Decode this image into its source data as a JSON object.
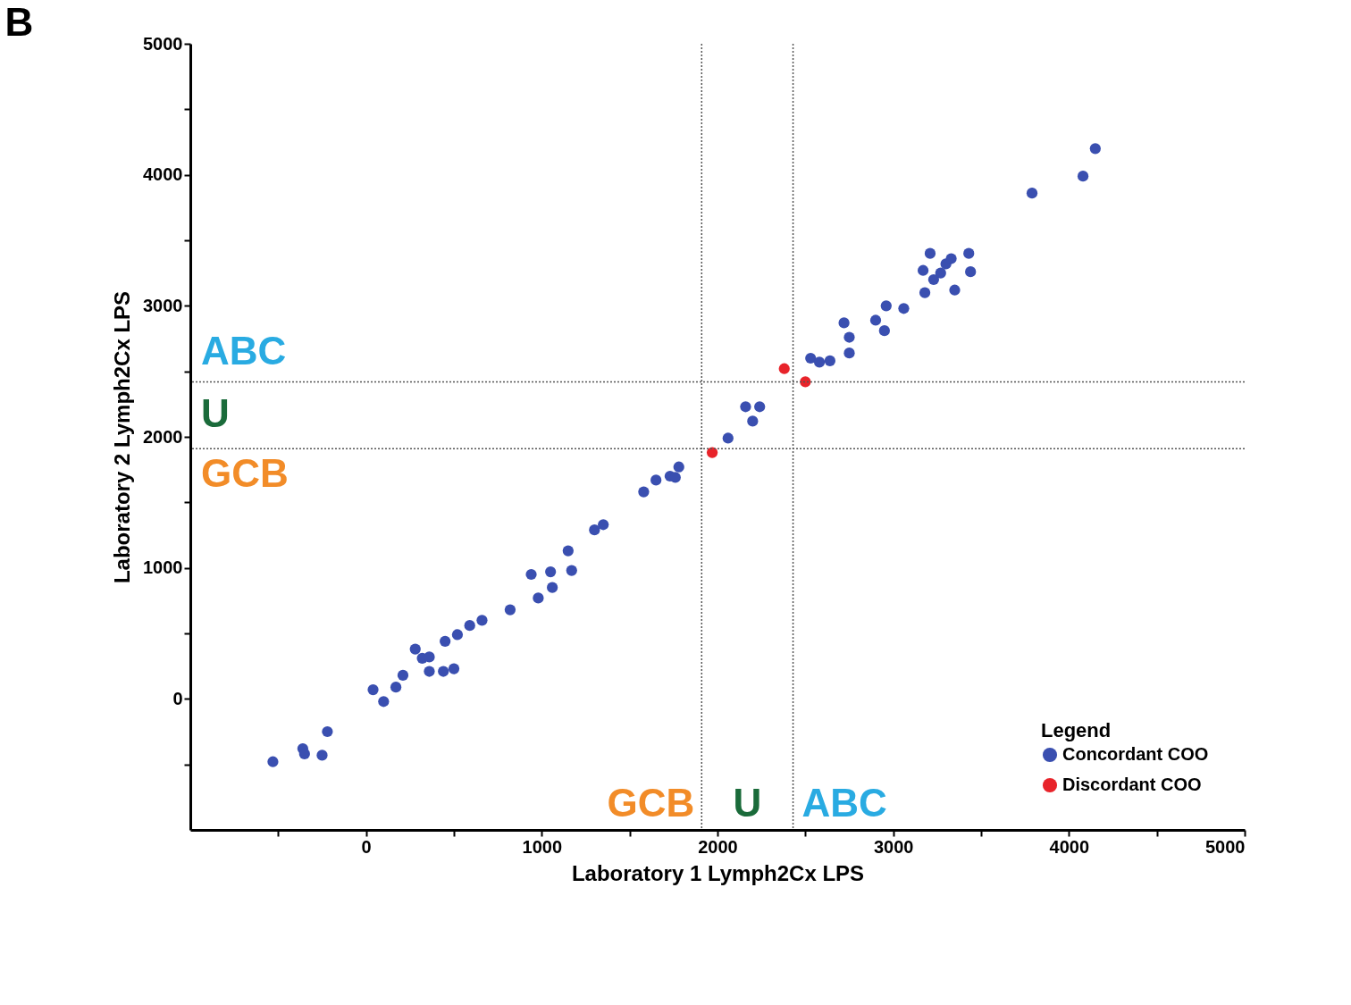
{
  "chart_data": {
    "type": "scatter",
    "title": "B",
    "xlabel": "Laboratory 1 Lymph2Cx LPS",
    "ylabel": "Laboratory 2 Lymph2Cx LPS",
    "legend_title": "Legend",
    "xlim": [
      -1000,
      5000
    ],
    "ylim": [
      -1000,
      5000
    ],
    "xticks": [
      {
        "value": -500,
        "label": null
      },
      0,
      {
        "value": 500,
        "label": null
      },
      1000,
      {
        "value": 1500,
        "label": null
      },
      2000,
      {
        "value": 2500,
        "label": null
      },
      3000,
      {
        "value": 3500,
        "label": null
      },
      4000,
      {
        "value": 4500,
        "label": null
      },
      5000
    ],
    "yticks": [
      {
        "value": -500,
        "label": null
      },
      0,
      {
        "value": 500,
        "label": null
      },
      1000,
      {
        "value": 1500,
        "label": null
      },
      2000,
      {
        "value": 2500,
        "label": null
      },
      3000,
      {
        "value": 3500,
        "label": null
      },
      4000,
      {
        "value": 4500,
        "label": null
      },
      5000
    ],
    "annotations": [
      "GCB",
      "U",
      "ABC",
      "ABC",
      "U",
      "GCB"
    ],
    "grid": false,
    "legend": "bottom right",
    "marker": "circle",
    "series": [
      {
        "name": "Concordant COO",
        "color": "#3a4fb0",
        "x": [
          -530,
          -360,
          -350,
          -250,
          -220,
          40,
          100,
          170,
          210,
          280,
          320,
          360,
          360,
          440,
          500,
          450,
          520,
          590,
          660,
          820,
          940,
          980,
          1050,
          1060,
          1150,
          1170,
          1300,
          1350,
          1580,
          1650,
          1730,
          1760,
          1780,
          2060,
          2160,
          2240,
          2200,
          2530,
          2580,
          2640,
          2720,
          2750,
          2750,
          2900,
          2950,
          2960,
          3060,
          3180,
          3170,
          3210,
          3230,
          3270,
          3300,
          3330,
          3350,
          3430,
          3440,
          3790,
          4080,
          4150
        ],
        "values": [
          -480,
          -380,
          -420,
          -430,
          -250,
          70,
          -20,
          90,
          180,
          380,
          310,
          320,
          210,
          210,
          230,
          440,
          490,
          560,
          600,
          680,
          950,
          770,
          970,
          850,
          1130,
          980,
          1290,
          1330,
          1580,
          1670,
          1700,
          1690,
          1770,
          1990,
          2230,
          2230,
          2120,
          2600,
          2570,
          2580,
          2870,
          2760,
          2640,
          2890,
          2810,
          3000,
          2980,
          3100,
          3270,
          3400,
          3200,
          3250,
          3320,
          3360,
          3120,
          3400,
          3260,
          3860,
          3990,
          4200
        ]
      },
      {
        "name": "Discordant COO",
        "color": "#e8232a",
        "x": [
          1970,
          2380,
          2500
        ],
        "values": [
          1880,
          2520,
          2420
        ]
      }
    ],
    "ref_lines": [
      {
        "axis": "x",
        "value": 1910,
        "color": "#555555",
        "line_style": "dotted"
      },
      {
        "axis": "x",
        "value": 2430,
        "color": "#555555",
        "line_style": "dotted"
      },
      {
        "axis": "y",
        "value": 1910,
        "color": "#555555",
        "line_style": "dotted"
      },
      {
        "axis": "y",
        "value": 2420,
        "color": "#555555",
        "line_style": "dotted"
      }
    ]
  }
}
